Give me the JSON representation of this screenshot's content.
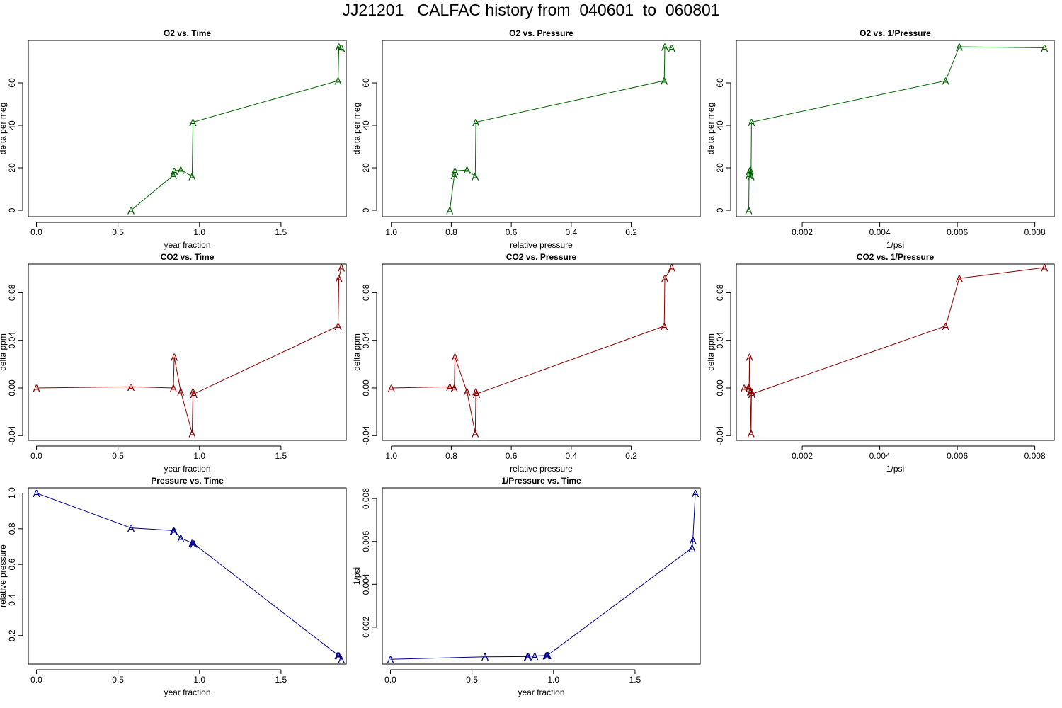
{
  "page": {
    "title": "JJ21201   CALFAC history from  040601  to  060801"
  },
  "chart_data": [
    {
      "id": "o2-vs-time",
      "type": "line",
      "title": "O2 vs. Time",
      "xlabel": "year fraction",
      "ylabel": "delta per meg",
      "xlim": [
        -0.05,
        1.9
      ],
      "ylim": [
        -3,
        80
      ],
      "x_reversed": false,
      "xticks": [
        0,
        0.5,
        1,
        1.5
      ],
      "xtick_labels": [
        "0.0",
        "0.5",
        "1.0",
        "1.5"
      ],
      "yticks": [
        0,
        20,
        40,
        60
      ],
      "ytick_labels": [
        "0",
        "20",
        "40",
        "60"
      ],
      "color": "#006400",
      "marker": "A",
      "x": [
        0.58,
        0.84,
        0.845,
        0.885,
        0.955,
        0.96,
        1.85,
        1.855,
        1.87
      ],
      "y": [
        0,
        16.5,
        18.5,
        19,
        16,
        41.5,
        61,
        77,
        76.5
      ]
    },
    {
      "id": "o2-vs-pressure",
      "type": "line",
      "title": "O2 vs. Pressure",
      "xlabel": "relative pressure",
      "ylabel": "delta per meg",
      "xlim": [
        1.03,
        -0.03
      ],
      "ylim": [
        -3,
        80
      ],
      "x_reversed": true,
      "xticks": [
        1,
        0.8,
        0.6,
        0.4,
        0.2
      ],
      "xtick_labels": [
        "1.0",
        "0.8",
        "0.6",
        "0.4",
        "0.2"
      ],
      "yticks": [
        0,
        20,
        40,
        60
      ],
      "ytick_labels": [
        "0",
        "20",
        "40",
        "60"
      ],
      "color": "#006400",
      "marker": "A",
      "x": [
        0.805,
        0.79,
        0.788,
        0.748,
        0.72,
        0.718,
        0.09,
        0.088,
        0.065
      ],
      "y": [
        0,
        16.5,
        18.5,
        19,
        16,
        41.5,
        61,
        77,
        76.5
      ]
    },
    {
      "id": "o2-vs-inv-pressure",
      "type": "line",
      "title": "O2 vs. 1/Pressure",
      "xlabel": "1/psi",
      "ylabel": "delta per meg",
      "xlim": [
        0.0003,
        0.0085
      ],
      "ylim": [
        -3,
        80
      ],
      "x_reversed": false,
      "xticks": [
        0.002,
        0.004,
        0.006,
        0.008
      ],
      "xtick_labels": [
        "0.002",
        "0.004",
        "0.006",
        "0.008"
      ],
      "yticks": [
        0,
        20,
        40,
        60
      ],
      "ytick_labels": [
        "0",
        "20",
        "40",
        "60"
      ],
      "color": "#006400",
      "marker": "A",
      "x": [
        0.00062,
        0.00063,
        0.00064,
        0.00066,
        0.00068,
        0.00069,
        0.0057,
        0.00605,
        0.00825
      ],
      "y": [
        0,
        16.5,
        18.5,
        19,
        16,
        41.5,
        61,
        77,
        76.5
      ]
    },
    {
      "id": "co2-vs-time",
      "type": "line",
      "title": "CO2 vs. Time",
      "xlabel": "year fraction",
      "ylabel": "delta ppm",
      "xlim": [
        -0.05,
        1.9
      ],
      "ylim": [
        -0.044,
        0.104
      ],
      "x_reversed": false,
      "xticks": [
        0,
        0.5,
        1,
        1.5
      ],
      "xtick_labels": [
        "0.0",
        "0.5",
        "1.0",
        "1.5"
      ],
      "yticks": [
        -0.04,
        0,
        0.04,
        0.08
      ],
      "ytick_labels": [
        "-0.04",
        "0.00",
        "0.04",
        "0.08"
      ],
      "color": "#8b0000",
      "marker": "A",
      "x": [
        0,
        0.58,
        0.84,
        0.845,
        0.885,
        0.955,
        0.96,
        0.965,
        1.85,
        1.855,
        1.87
      ],
      "y": [
        0,
        0.001,
        0,
        0.026,
        -0.003,
        -0.038,
        -0.003,
        -0.005,
        0.052,
        0.092,
        0.101
      ]
    },
    {
      "id": "co2-vs-pressure",
      "type": "line",
      "title": "CO2 vs. Pressure",
      "xlabel": "relative pressure",
      "ylabel": "delta ppm",
      "xlim": [
        1.03,
        -0.03
      ],
      "ylim": [
        -0.044,
        0.104
      ],
      "x_reversed": true,
      "xticks": [
        1,
        0.8,
        0.6,
        0.4,
        0.2
      ],
      "xtick_labels": [
        "1.0",
        "0.8",
        "0.6",
        "0.4",
        "0.2"
      ],
      "yticks": [
        -0.04,
        0,
        0.04,
        0.08
      ],
      "ytick_labels": [
        "-0.04",
        "0.00",
        "0.04",
        "0.08"
      ],
      "color": "#8b0000",
      "marker": "A",
      "x": [
        1.0,
        0.805,
        0.79,
        0.788,
        0.748,
        0.72,
        0.718,
        0.716,
        0.09,
        0.088,
        0.065
      ],
      "y": [
        0,
        0.001,
        0,
        0.026,
        -0.003,
        -0.038,
        -0.003,
        -0.005,
        0.052,
        0.092,
        0.101
      ]
    },
    {
      "id": "co2-vs-inv-pressure",
      "type": "line",
      "title": "CO2 vs. 1/Pressure",
      "xlabel": "1/psi",
      "ylabel": "delta ppm",
      "xlim": [
        0.0003,
        0.0085
      ],
      "ylim": [
        -0.044,
        0.104
      ],
      "x_reversed": false,
      "xticks": [
        0.002,
        0.004,
        0.006,
        0.008
      ],
      "xtick_labels": [
        "0.002",
        "0.004",
        "0.006",
        "0.008"
      ],
      "yticks": [
        -0.04,
        0,
        0.04,
        0.08
      ],
      "ytick_labels": [
        "-0.04",
        "0.00",
        "0.04",
        "0.08"
      ],
      "color": "#8b0000",
      "marker": "A",
      "x": [
        0.0005,
        0.00062,
        0.00063,
        0.00064,
        0.00066,
        0.00068,
        0.00069,
        0.0007,
        0.0057,
        0.00605,
        0.00825
      ],
      "y": [
        0,
        0.001,
        0,
        0.026,
        -0.003,
        -0.038,
        -0.003,
        -0.005,
        0.052,
        0.092,
        0.101
      ]
    },
    {
      "id": "pressure-vs-time",
      "type": "line",
      "title": "Pressure vs. Time",
      "xlabel": "year fraction",
      "ylabel": "relative pressure",
      "xlim": [
        -0.05,
        1.9
      ],
      "ylim": [
        0.04,
        1.03
      ],
      "x_reversed": false,
      "xticks": [
        0,
        0.5,
        1,
        1.5
      ],
      "xtick_labels": [
        "0.0",
        "0.5",
        "1.0",
        "1.5"
      ],
      "yticks": [
        0.2,
        0.4,
        0.6,
        0.8,
        1.0
      ],
      "ytick_labels": [
        "0.2",
        "0.4",
        "0.6",
        "0.8",
        "1.0"
      ],
      "color": "#00008b",
      "marker": "A",
      "x": [
        0,
        0.58,
        0.84,
        0.845,
        0.885,
        0.955,
        0.96,
        0.965,
        1.85,
        1.855,
        1.87
      ],
      "y": [
        1.0,
        0.805,
        0.79,
        0.788,
        0.748,
        0.72,
        0.718,
        0.716,
        0.09,
        0.088,
        0.065
      ]
    },
    {
      "id": "inv-pressure-vs-time",
      "type": "line",
      "title": "1/Pressure vs. Time",
      "xlabel": "year fraction",
      "ylabel": "1/psi",
      "xlim": [
        -0.05,
        1.9
      ],
      "ylim": [
        0.00028,
        0.0085
      ],
      "x_reversed": false,
      "xticks": [
        0,
        0.5,
        1,
        1.5
      ],
      "xtick_labels": [
        "0.0",
        "0.5",
        "1.0",
        "1.5"
      ],
      "yticks": [
        0.002,
        0.004,
        0.006,
        0.008
      ],
      "ytick_labels": [
        "0.002",
        "0.004",
        "0.006",
        "0.008"
      ],
      "color": "#00008b",
      "marker": "A",
      "x": [
        0,
        0.58,
        0.84,
        0.845,
        0.885,
        0.955,
        0.96,
        0.965,
        1.85,
        1.855,
        1.87
      ],
      "y": [
        0.0005,
        0.00062,
        0.00063,
        0.00064,
        0.00066,
        0.00068,
        0.00069,
        0.0007,
        0.0057,
        0.00605,
        0.00825
      ]
    }
  ]
}
